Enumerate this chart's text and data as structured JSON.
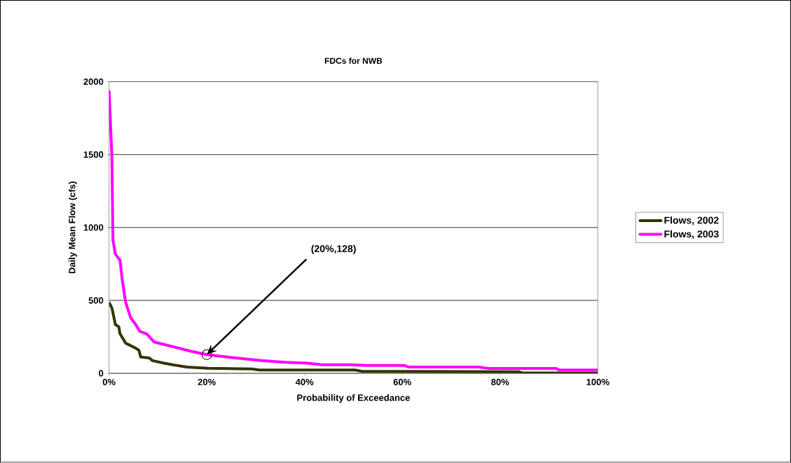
{
  "chart_data": {
    "type": "line",
    "title": "FDCs for NWB",
    "xlabel": "Probability of Exceedance",
    "ylabel": "Daily Mean Flow (cfs)",
    "xlim": [
      0,
      100
    ],
    "ylim": [
      0,
      2000
    ],
    "xticks": [
      {
        "value": 0,
        "label": "0%"
      },
      {
        "value": 20,
        "label": "20%"
      },
      {
        "value": 40,
        "label": "40%"
      },
      {
        "value": 60,
        "label": "60%"
      },
      {
        "value": 80,
        "label": "80%"
      },
      {
        "value": 100,
        "label": "100%"
      }
    ],
    "yticks": [
      0,
      500,
      1000,
      1500,
      2000
    ],
    "grid": "y",
    "legend": "right",
    "marker": "none",
    "line_style": "solid",
    "annotations": [
      {
        "text": "(20%,128)",
        "x": 20,
        "y": 128
      }
    ],
    "series": [
      {
        "name": "Flows, 2002",
        "color": "#333300",
        "x": [
          0,
          0.6,
          1.3,
          2,
          2.25,
          3.4,
          5.3,
          6.1,
          6.5,
          8.2,
          8.9,
          11.1,
          13,
          15.9,
          20.2,
          29.3,
          30.7,
          50.3,
          51.7,
          83.8,
          84.7,
          100
        ],
        "values": [
          487,
          447,
          335,
          319,
          271,
          207,
          175,
          159,
          111,
          106,
          87,
          71,
          59,
          43,
          35,
          30,
          23,
          23,
          14,
          11,
          2,
          2
        ]
      },
      {
        "name": "Flows, 2003",
        "color": "#ff00ff",
        "x": [
          0,
          0.57,
          0.8,
          1.3,
          2.25,
          2.7,
          3.4,
          4.4,
          5.6,
          6.3,
          7.7,
          9.2,
          11.1,
          14,
          16.8,
          20,
          24.5,
          31.2,
          36,
          40.7,
          43.6,
          49.4,
          52.7,
          60.4,
          61.3,
          75.6,
          77.6,
          91.4,
          92.1,
          100
        ],
        "values": [
          1940,
          1505,
          912,
          817,
          776,
          640,
          487,
          383,
          327,
          287,
          271,
          215,
          199,
          175,
          151,
          128,
          110,
          87,
          75,
          70,
          59,
          59,
          54,
          54,
          43,
          43,
          34,
          34,
          23,
          23
        ]
      }
    ]
  }
}
